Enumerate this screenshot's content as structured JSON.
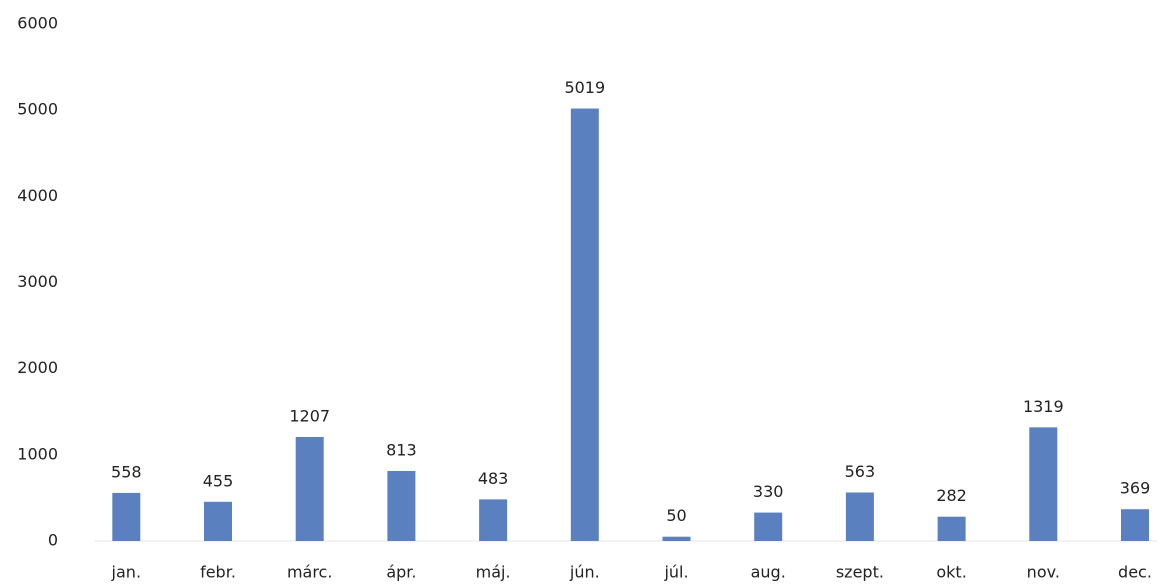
{
  "chart_data": {
    "type": "bar",
    "categories": [
      "jan.",
      "febr.",
      "márc.",
      "ápr.",
      "máj.",
      "jún.",
      "júl.",
      "aug.",
      "szept.",
      "okt.",
      "nov.",
      "dec."
    ],
    "values": [
      558,
      455,
      1207,
      813,
      483,
      5019,
      50,
      330,
      563,
      282,
      1319,
      369
    ],
    "color": "#5b80bf",
    "ylim": [
      0,
      6000
    ],
    "yticks": [
      0,
      1000,
      2000,
      3000,
      4000,
      5000,
      6000
    ],
    "grid": false
  }
}
